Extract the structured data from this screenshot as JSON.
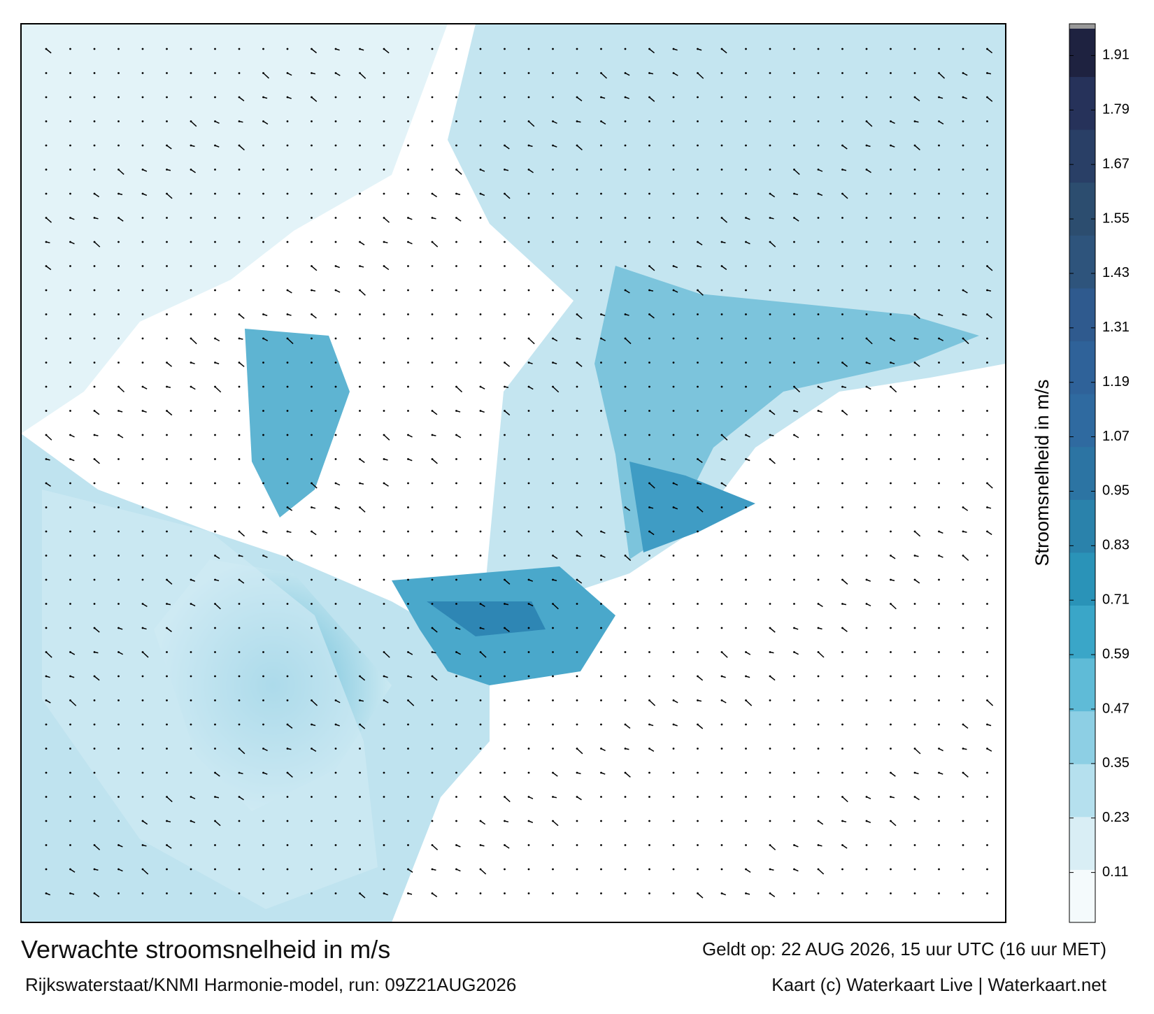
{
  "title": "Verwachte stroomsnelheid in m/s",
  "valid_time": "Geldt op: 22 AUG 2026, 15 uur UTC (16 uur MET)",
  "model_run": "Rijkswaterstaat/KNMI Harmonie-model, run: 09Z21AUG2026",
  "credit": "Kaart (c) Waterkaart Live | Waterkaart.net",
  "colorbar": {
    "label": "Stroomsnelheid in m/s",
    "lim": [
      0,
      1.98
    ],
    "ticks": [
      0.11,
      0.23,
      0.35,
      0.47,
      0.59,
      0.71,
      0.83,
      0.95,
      1.07,
      1.19,
      1.31,
      1.43,
      1.55,
      1.67,
      1.79,
      1.91
    ],
    "colors": [
      "#f4fafc",
      "#d9eef5",
      "#b5e0ee",
      "#8dcfe4",
      "#5fbbd7",
      "#3aa6c8",
      "#2a93b8",
      "#2a82ab",
      "#2c74a3",
      "#2f6aa0",
      "#2f6299",
      "#2f5a8e",
      "#2e547c",
      "#2c4d6f",
      "#293f66",
      "#26325a",
      "#1e2240"
    ]
  }
}
